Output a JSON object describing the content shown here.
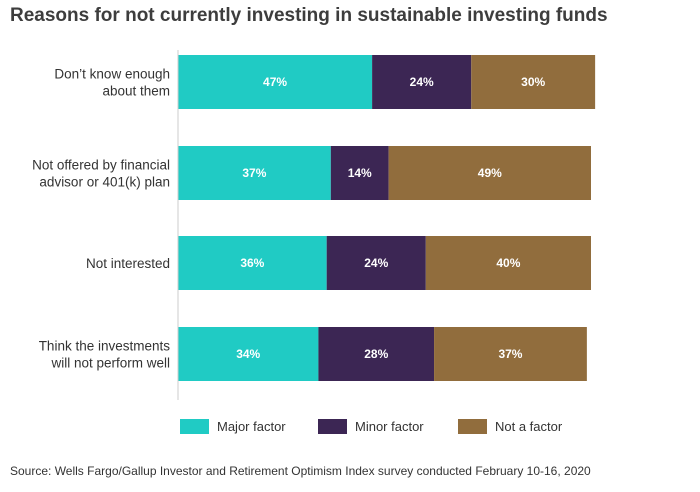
{
  "chart_data": {
    "type": "bar",
    "orientation": "horizontal",
    "stacked": true,
    "title": "Reasons for not currently investing in sustainable investing funds",
    "categories": [
      [
        "Don’t know enough",
        "about them"
      ],
      [
        "Not offered by financial",
        "advisor or 401(k) plan"
      ],
      [
        "Not interested"
      ],
      [
        "Think the investments",
        "will not perform well"
      ]
    ],
    "series": [
      {
        "name": "Major factor",
        "color": "#20cbc4",
        "values": [
          47,
          37,
          36,
          34
        ]
      },
      {
        "name": "Minor factor",
        "color": "#3c2654",
        "values": [
          24,
          14,
          24,
          28
        ]
      },
      {
        "name": "Not a factor",
        "color": "#916d3d",
        "values": [
          30,
          49,
          40,
          37
        ]
      }
    ],
    "value_suffix": "%",
    "xlim": [
      0,
      100
    ],
    "grid": false,
    "legend_position": "bottom"
  },
  "source": "Source: Wells Fargo/Gallup Investor and Retirement Optimism Index survey conducted February 10-16, 2020"
}
